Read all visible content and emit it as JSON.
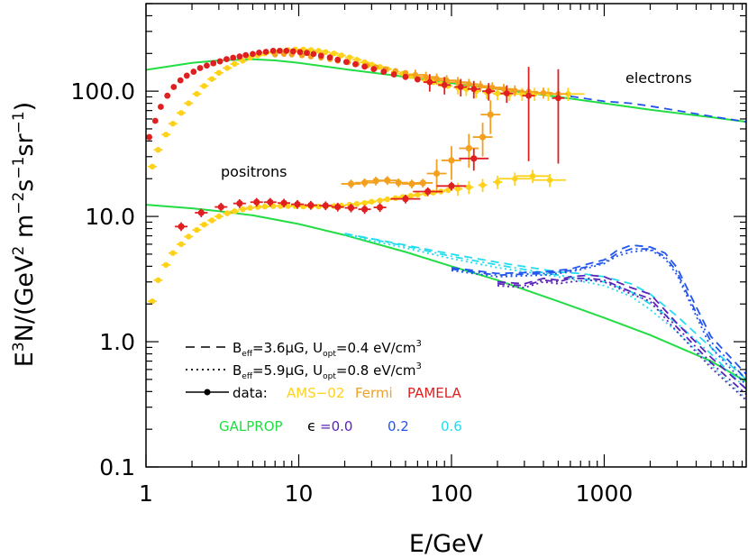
{
  "chart_data": {
    "type": "line",
    "xlabel": "E/GeV",
    "ylabel_parts": {
      "E": "E",
      "exp3": "3",
      "N": "N/(GeV",
      "exp2": "2",
      "m": " m",
      "expm2": "−2",
      "s": "s",
      "expm1a": "−1",
      "sr": "sr",
      "expm1b": "−1",
      "close": ")"
    },
    "xscale": "log",
    "yscale": "log",
    "xlim": [
      1,
      8500
    ],
    "ylim": [
      0.1,
      500
    ],
    "xticks": [
      1,
      10,
      100,
      1000
    ],
    "xtick_labels": [
      "1",
      "10",
      "100",
      "1000"
    ],
    "yticks": [
      0.1,
      1.0,
      10.0,
      100.0
    ],
    "ytick_labels": [
      "0.1",
      "1.0",
      "10.0",
      "100.0"
    ],
    "annotations": {
      "electrons": "electrons",
      "positrons": "positrons"
    },
    "legend": {
      "line1": {
        "B": "B",
        "sub": "eff",
        "rest": "=3.6μG,  U",
        "usub": "opt",
        "val": "=0.4  eV/cm",
        "exp": "3"
      },
      "line2": {
        "B": "B",
        "sub": "eff",
        "rest": "=5.9μG,  U",
        "usub": "opt",
        "val": "=0.8  eV/cm",
        "exp": "3"
      },
      "data_label": "data:",
      "ams": "AMS−02",
      "fermi": "Fermi",
      "pamela": "PAMELA",
      "galprop": "GALPROP",
      "eps": "ϵ",
      "eps0": "=0.0",
      "eps1": "0.2",
      "eps2": "0.6"
    },
    "colors": {
      "ams": "#ffd21a",
      "fermi": "#f2a01e",
      "pamela": "#e02020",
      "galprop": "#22dd44",
      "eps0": "#5a22bb",
      "eps1": "#2255ee",
      "eps2": "#22ddee"
    },
    "series": [
      {
        "name": "GALPROP electrons",
        "color": "galprop",
        "style": "solid",
        "x": [
          1,
          2,
          3,
          5,
          7,
          10,
          20,
          50,
          100,
          200,
          500,
          1000,
          2000,
          5000,
          8500
        ],
        "y": [
          148,
          168,
          176,
          180,
          176,
          168,
          150,
          130,
          116,
          104,
          90,
          80,
          71,
          62,
          57
        ]
      },
      {
        "name": "GALPROP positrons",
        "color": "galprop",
        "style": "solid",
        "x": [
          1,
          2,
          3,
          5,
          10,
          20,
          50,
          100,
          200,
          500,
          1000,
          2000,
          5000,
          8500
        ],
        "y": [
          12.4,
          11.6,
          11.0,
          10.2,
          8.7,
          7.1,
          5.2,
          4.0,
          3.1,
          2.1,
          1.55,
          1.13,
          0.7,
          0.48
        ]
      },
      {
        "name": "electrons eps=0.2 dashed",
        "color": "eps1",
        "style": "dashed",
        "x": [
          600,
          1000,
          1500,
          2000,
          3000,
          5000,
          8500
        ],
        "y": [
          91,
          83,
          80,
          76,
          70,
          63,
          57
        ]
      },
      {
        "name": "positrons eps=0.6 dashed",
        "color": "eps2",
        "style": "dashed",
        "x": [
          20,
          50,
          100,
          200,
          500,
          700,
          1000,
          1500,
          2000,
          3000,
          5000,
          8500
        ],
        "y": [
          7.3,
          5.9,
          5.0,
          4.3,
          3.6,
          3.5,
          3.3,
          2.9,
          2.4,
          1.6,
          0.9,
          0.5
        ]
      },
      {
        "name": "positrons eps=0.6 dotted",
        "color": "eps2",
        "style": "dotted",
        "x": [
          20,
          50,
          100,
          200,
          500,
          1000,
          1500,
          2000,
          3000,
          5000,
          8500
        ],
        "y": [
          7.1,
          5.6,
          4.6,
          3.9,
          3.3,
          2.8,
          2.3,
          1.8,
          1.2,
          0.65,
          0.35
        ]
      },
      {
        "name": "positrons eps=0.6 dash-dot",
        "color": "eps2",
        "style": "dashdot",
        "x": [
          20,
          50,
          100,
          200,
          500,
          1000,
          1500,
          2000,
          3000,
          5000,
          8500
        ],
        "y": [
          7.3,
          5.8,
          4.8,
          4.1,
          3.4,
          3.0,
          2.5,
          2.0,
          1.4,
          0.8,
          0.42
        ]
      },
      {
        "name": "positrons eps=0.2 dashed",
        "color": "eps1",
        "style": "dashed",
        "x": [
          100,
          200,
          400,
          600,
          800,
          1000,
          1200,
          1500,
          2000,
          2500,
          3000,
          4000,
          5000,
          8500
        ],
        "y": [
          3.9,
          3.5,
          3.6,
          3.8,
          4.2,
          4.5,
          5.3,
          5.9,
          5.7,
          5.1,
          3.9,
          1.9,
          1.1,
          0.55
        ]
      },
      {
        "name": "positrons eps=0.2 dotted",
        "color": "eps1",
        "style": "dotted",
        "x": [
          100,
          200,
          400,
          600,
          800,
          1000,
          1200,
          1500,
          2000,
          2500,
          3000,
          4000,
          5000,
          8500
        ],
        "y": [
          3.7,
          3.3,
          3.4,
          3.6,
          3.9,
          4.2,
          4.8,
          5.2,
          5.4,
          4.6,
          3.4,
          1.6,
          0.9,
          0.45
        ]
      },
      {
        "name": "positrons eps=0.2 dash-dot",
        "color": "eps1",
        "style": "dashdot",
        "x": [
          100,
          200,
          400,
          600,
          800,
          1000,
          1200,
          1500,
          2000,
          2500,
          3000,
          4000,
          5000,
          8500
        ],
        "y": [
          3.8,
          3.4,
          3.5,
          3.7,
          4.0,
          4.3,
          5.0,
          5.5,
          5.5,
          4.8,
          3.6,
          1.7,
          1.0,
          0.5
        ]
      },
      {
        "name": "positrons eps=0.0 dashed",
        "color": "eps0",
        "style": "dashed",
        "x": [
          200,
          300,
          400,
          500,
          600,
          800,
          1000,
          1500,
          2000,
          3000,
          5000,
          8500
        ],
        "y": [
          3.0,
          2.9,
          3.2,
          3.1,
          3.3,
          3.4,
          3.3,
          2.7,
          2.4,
          1.4,
          0.75,
          0.42
        ]
      },
      {
        "name": "positrons eps=0.0 dotted",
        "color": "eps0",
        "style": "dotted",
        "x": [
          200,
          300,
          400,
          500,
          600,
          800,
          1000,
          1500,
          2000,
          3000,
          5000,
          8500
        ],
        "y": [
          2.8,
          2.7,
          3.0,
          2.9,
          3.0,
          3.1,
          3.0,
          2.4,
          2.1,
          1.2,
          0.62,
          0.34
        ]
      },
      {
        "name": "positrons eps=0.0 dash-dot",
        "color": "eps0",
        "style": "dashdot",
        "x": [
          200,
          300,
          400,
          500,
          600,
          800,
          1000,
          1500,
          2000,
          3000,
          5000,
          8500
        ],
        "y": [
          2.9,
          2.8,
          3.1,
          3.0,
          3.2,
          3.2,
          3.1,
          2.5,
          2.2,
          1.3,
          0.68,
          0.38
        ]
      }
    ],
    "data_points": {
      "ams_electrons": {
        "x": [
          1.1,
          1.2,
          1.35,
          1.5,
          1.7,
          1.9,
          2.15,
          2.4,
          2.7,
          3.0,
          3.4,
          3.8,
          4.3,
          4.8,
          5.4,
          6.0,
          6.8,
          7.6,
          8.5,
          9.5,
          10.7,
          12,
          13.5,
          15,
          17,
          19,
          21.5,
          24,
          27,
          30,
          34,
          38,
          43,
          48,
          54,
          60,
          68,
          76,
          85,
          95,
          110,
          125,
          145,
          170,
          200,
          240,
          290,
          350,
          430,
          580
        ],
        "y": [
          25,
          34,
          45,
          55,
          67,
          80,
          95,
          110,
          125,
          140,
          153,
          165,
          175,
          185,
          193,
          200,
          205,
          210,
          213,
          215,
          215,
          213,
          210,
          205,
          200,
          193,
          186,
          178,
          170,
          163,
          156,
          150,
          143,
          138,
          132,
          127,
          122,
          118,
          114,
          110,
          107,
          104,
          100,
          98,
          96,
          95,
          95,
          95,
          95,
          95
        ]
      },
      "ams_positrons": {
        "x": [
          1.1,
          1.2,
          1.35,
          1.5,
          1.7,
          1.9,
          2.15,
          2.4,
          2.7,
          3.0,
          3.4,
          3.8,
          4.3,
          4.8,
          5.4,
          6.0,
          6.8,
          7.6,
          8.5,
          9.5,
          10.7,
          12,
          13.5,
          15,
          17,
          19,
          21.5,
          24,
          27,
          30,
          34,
          38,
          43,
          48,
          54,
          60,
          68,
          76,
          85,
          95,
          110,
          130,
          160,
          200,
          260,
          340,
          440
        ],
        "y": [
          2.1,
          3.1,
          4.1,
          5.1,
          6.0,
          6.9,
          7.8,
          8.6,
          9.3,
          10.0,
          10.6,
          11.0,
          11.4,
          11.7,
          11.9,
          12.0,
          12.1,
          12.1,
          12.1,
          12.1,
          12.0,
          12.0,
          12.0,
          12.0,
          12.1,
          12.2,
          12.4,
          12.6,
          12.8,
          13.1,
          13.4,
          13.7,
          14.0,
          14.3,
          14.6,
          14.9,
          15.2,
          15.5,
          15.8,
          16.2,
          16.6,
          17.1,
          17.8,
          18.8,
          20,
          21,
          19.5
        ]
      },
      "fermi_electrons": {
        "x": [
          7,
          8,
          9,
          10.5,
          12,
          14,
          16,
          18,
          21,
          24,
          28,
          32,
          37,
          43,
          50,
          58,
          68,
          80,
          93,
          110,
          130,
          155,
          185,
          220,
          260,
          320,
          400,
          500
        ],
        "y": [
          196,
          198,
          196,
          193,
          189,
          185,
          180,
          175,
          170,
          165,
          160,
          155,
          150,
          145,
          140,
          135,
          130,
          126,
          122,
          118,
          114,
          110,
          107,
          104,
          101,
          99,
          97,
          95
        ]
      },
      "fermi_positrons": {
        "x": [
          22,
          27,
          32,
          38,
          45,
          55,
          65,
          80,
          100,
          130,
          160,
          180
        ],
        "y": [
          18.2,
          18.6,
          19.2,
          19.4,
          18.6,
          18.2,
          18.5,
          22,
          28,
          35,
          43,
          65
        ]
      },
      "pamela_electrons": {
        "x": [
          1.05,
          1.15,
          1.25,
          1.38,
          1.52,
          1.68,
          1.85,
          2.05,
          2.26,
          2.5,
          2.76,
          3.05,
          3.37,
          3.72,
          4.1,
          4.5,
          5.0,
          5.5,
          6.1,
          6.8,
          7.5,
          8.3,
          9.2,
          10.2,
          11.3,
          12.5,
          14,
          16,
          18,
          20.5,
          23.5,
          27,
          31,
          36,
          42,
          50,
          60,
          72,
          90,
          115,
          140,
          175,
          230,
          320,
          500
        ],
        "y": [
          43,
          58,
          75,
          92,
          108,
          122,
          133,
          143,
          153,
          160,
          167,
          173,
          180,
          185,
          189,
          194,
          198,
          203,
          206,
          210,
          210,
          210,
          208,
          205,
          202,
          198,
          192,
          186,
          178,
          171,
          164,
          157,
          150,
          143,
          136,
          130,
          124,
          118,
          112,
          108,
          104,
          100,
          96,
          92,
          88
        ]
      },
      "pamela_positrons": {
        "x": [
          1.7,
          2.3,
          3.1,
          4.1,
          5.3,
          6.5,
          8.0,
          9.8,
          12,
          15,
          18,
          22,
          27,
          34,
          50,
          70,
          100,
          140
        ],
        "y": [
          8.3,
          10.7,
          11.9,
          12.7,
          13.0,
          13.0,
          12.8,
          12.5,
          12.3,
          12.2,
          11.9,
          11.7,
          11.4,
          11.8,
          13.8,
          15.8,
          17.5,
          29
        ]
      }
    }
  }
}
